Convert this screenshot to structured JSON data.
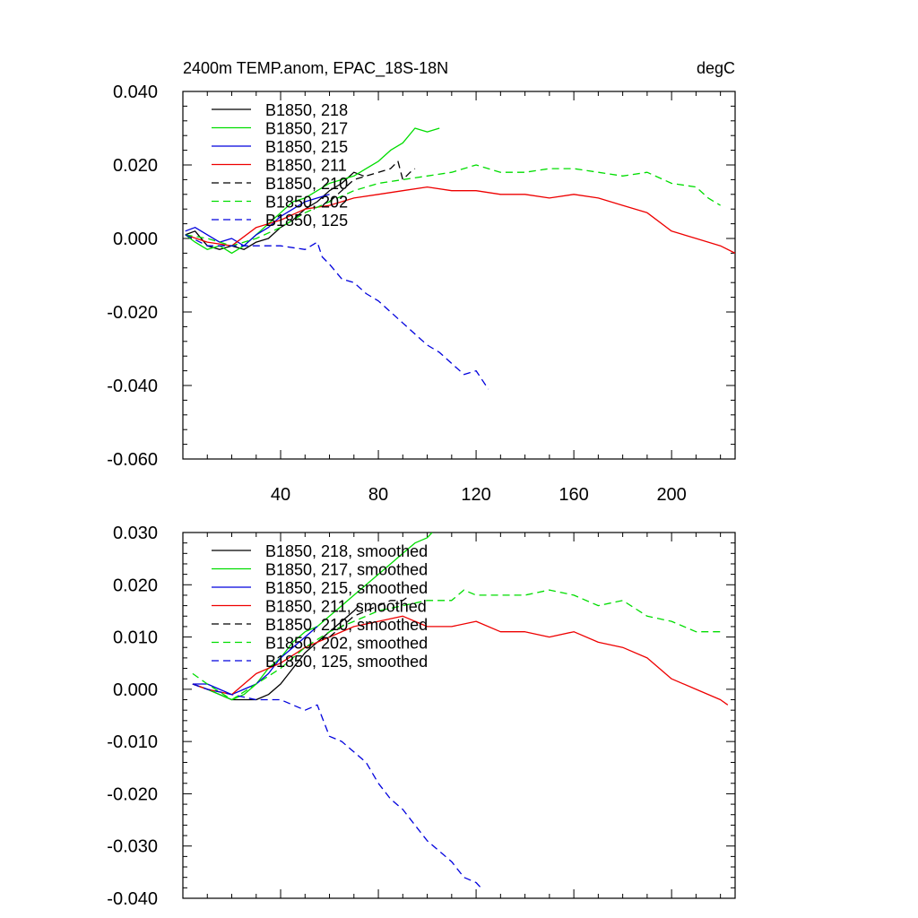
{
  "chart_data": [
    {
      "type": "line",
      "title": "2400m TEMP.anom, EPAC_18S-18N",
      "units": "degC",
      "xlim": [
        0,
        226
      ],
      "ylim": [
        -0.06,
        0.04
      ],
      "xticks": [
        40,
        80,
        120,
        160,
        200
      ],
      "xtick_labels": [
        "40",
        "80",
        "120",
        "160",
        "200"
      ],
      "yticks": [
        0.04,
        0.02,
        0.0,
        -0.02,
        -0.04,
        -0.06
      ],
      "ytick_labels": [
        "0.040",
        "0.020",
        "0.000",
        "-0.020",
        "-0.040",
        "-0.060"
      ],
      "grid": false,
      "legend_position": "top-left",
      "series": [
        {
          "name": "B1850, 218",
          "color": "#000000",
          "dash": "solid",
          "x": [
            1,
            5,
            10,
            15,
            20,
            25,
            30,
            35,
            40,
            45,
            50,
            55,
            60,
            65,
            70,
            74
          ],
          "y": [
            0.001,
            0.002,
            -0.002,
            -0.003,
            -0.002,
            -0.003,
            -0.001,
            0.0,
            0.003,
            0.005,
            0.008,
            0.01,
            0.013,
            0.015,
            0.018,
            0.017
          ]
        },
        {
          "name": "B1850, 217",
          "color": "#00dd00",
          "dash": "solid",
          "x": [
            1,
            5,
            10,
            15,
            20,
            25,
            30,
            35,
            40,
            45,
            50,
            55,
            60,
            65,
            70,
            75,
            80,
            85,
            90,
            95,
            100,
            105
          ],
          "y": [
            0.001,
            -0.001,
            -0.003,
            -0.002,
            -0.004,
            -0.002,
            0.001,
            0.004,
            0.007,
            0.01,
            0.011,
            0.013,
            0.015,
            0.016,
            0.017,
            0.019,
            0.021,
            0.024,
            0.026,
            0.03,
            0.029,
            0.03
          ]
        },
        {
          "name": "B1850, 215",
          "color": "#0000dd",
          "dash": "solid",
          "x": [
            1,
            5,
            10,
            15,
            20,
            25,
            30,
            35,
            40,
            45,
            50,
            55,
            60
          ],
          "y": [
            0.002,
            0.003,
            0.001,
            -0.001,
            0.0,
            -0.002,
            0.001,
            0.003,
            0.006,
            0.008,
            0.01,
            0.011,
            0.012
          ]
        },
        {
          "name": "B1850, 211",
          "color": "#ee0000",
          "dash": "solid",
          "x": [
            1,
            10,
            20,
            30,
            40,
            50,
            60,
            70,
            80,
            90,
            100,
            110,
            120,
            130,
            140,
            150,
            160,
            170,
            180,
            190,
            200,
            210,
            220,
            226
          ],
          "y": [
            0.001,
            -0.001,
            -0.002,
            0.003,
            0.005,
            0.008,
            0.009,
            0.011,
            0.012,
            0.013,
            0.014,
            0.013,
            0.013,
            0.012,
            0.012,
            0.011,
            0.012,
            0.011,
            0.009,
            0.007,
            0.002,
            0.0,
            -0.002,
            -0.004
          ]
        },
        {
          "name": "B1850, 210",
          "color": "#000000",
          "dash": "dashed",
          "x": [
            60,
            65,
            70,
            75,
            80,
            85,
            88,
            90,
            93,
            95
          ],
          "y": [
            0.01,
            0.013,
            0.016,
            0.017,
            0.018,
            0.019,
            0.021,
            0.016,
            0.018,
            0.019
          ]
        },
        {
          "name": "B1850, 202",
          "color": "#00dd00",
          "dash": "dashed",
          "x": [
            1,
            10,
            20,
            30,
            40,
            50,
            60,
            70,
            80,
            90,
            100,
            110,
            120,
            130,
            140,
            150,
            160,
            170,
            180,
            190,
            200,
            210,
            215,
            220
          ],
          "y": [
            0.001,
            0.0,
            -0.002,
            0.0,
            0.003,
            0.007,
            0.01,
            0.013,
            0.015,
            0.016,
            0.017,
            0.018,
            0.02,
            0.018,
            0.018,
            0.019,
            0.019,
            0.018,
            0.017,
            0.018,
            0.015,
            0.014,
            0.011,
            0.009
          ]
        },
        {
          "name": "B1850, 125",
          "color": "#0000dd",
          "dash": "dashed",
          "x": [
            1,
            10,
            20,
            30,
            40,
            50,
            55,
            57,
            60,
            65,
            70,
            75,
            80,
            85,
            90,
            95,
            100,
            105,
            110,
            115,
            120,
            125
          ],
          "y": [
            0.001,
            -0.002,
            -0.002,
            -0.002,
            -0.002,
            -0.003,
            -0.001,
            -0.005,
            -0.007,
            -0.011,
            -0.012,
            -0.015,
            -0.017,
            -0.02,
            -0.023,
            -0.026,
            -0.029,
            -0.031,
            -0.034,
            -0.037,
            -0.036,
            -0.041
          ]
        }
      ]
    },
    {
      "type": "line",
      "xlim": [
        0,
        226
      ],
      "ylim": [
        -0.04,
        0.03
      ],
      "xticks": [
        40,
        80,
        120,
        160,
        200
      ],
      "yticks": [
        0.03,
        0.02,
        0.01,
        0.0,
        -0.01,
        -0.02,
        -0.03,
        -0.04
      ],
      "ytick_labels": [
        "0.030",
        "0.020",
        "0.010",
        "0.000",
        "-0.010",
        "-0.020",
        "-0.030",
        "-0.040"
      ],
      "grid": false,
      "legend_position": "top-left",
      "series": [
        {
          "name": "B1850, 218, smoothed",
          "color": "#000000",
          "dash": "solid",
          "x": [
            4,
            10,
            15,
            20,
            25,
            30,
            35,
            40,
            45,
            50,
            55,
            60,
            65,
            70,
            72
          ],
          "y": [
            0.001,
            0.0,
            -0.001,
            -0.002,
            -0.002,
            -0.002,
            -0.001,
            0.001,
            0.004,
            0.007,
            0.009,
            0.011,
            0.013,
            0.015,
            0.016
          ]
        },
        {
          "name": "B1850, 217, smoothed",
          "color": "#00dd00",
          "dash": "solid",
          "x": [
            4,
            10,
            15,
            20,
            25,
            30,
            35,
            40,
            45,
            50,
            55,
            60,
            65,
            70,
            75,
            80,
            85,
            90,
            95,
            100,
            102
          ],
          "y": [
            0.001,
            0.0,
            -0.001,
            -0.002,
            -0.001,
            0.001,
            0.004,
            0.006,
            0.009,
            0.011,
            0.012,
            0.014,
            0.016,
            0.018,
            0.02,
            0.022,
            0.024,
            0.026,
            0.028,
            0.029,
            0.03
          ]
        },
        {
          "name": "B1850, 215, smoothed",
          "color": "#0000dd",
          "dash": "solid",
          "x": [
            4,
            10,
            15,
            20,
            25,
            30,
            35,
            40,
            45,
            50,
            55
          ],
          "y": [
            0.001,
            0.001,
            0.0,
            -0.001,
            0.0,
            0.001,
            0.003,
            0.006,
            0.008,
            0.01,
            0.012
          ]
        },
        {
          "name": "B1850, 211, smoothed",
          "color": "#ee0000",
          "dash": "solid",
          "x": [
            4,
            10,
            20,
            30,
            40,
            50,
            60,
            70,
            80,
            90,
            100,
            110,
            120,
            130,
            140,
            150,
            160,
            170,
            180,
            190,
            200,
            210,
            220,
            223
          ],
          "y": [
            0.001,
            0.0,
            -0.001,
            0.003,
            0.005,
            0.008,
            0.01,
            0.012,
            0.013,
            0.014,
            0.012,
            0.012,
            0.013,
            0.011,
            0.011,
            0.01,
            0.011,
            0.009,
            0.008,
            0.006,
            0.002,
            0.0,
            -0.002,
            -0.003
          ]
        },
        {
          "name": "B1850, 210, smoothed",
          "color": "#000000",
          "dash": "dashed",
          "x": [
            60,
            65,
            70,
            75,
            80,
            85,
            90,
            93
          ],
          "y": [
            0.01,
            0.012,
            0.014,
            0.015,
            0.016,
            0.017,
            0.017,
            0.018
          ]
        },
        {
          "name": "B1850, 202, smoothed",
          "color": "#00dd00",
          "dash": "dashed",
          "x": [
            4,
            10,
            20,
            30,
            40,
            50,
            60,
            70,
            80,
            90,
            100,
            110,
            115,
            120,
            130,
            140,
            150,
            160,
            170,
            180,
            190,
            200,
            210,
            215,
            220
          ],
          "y": [
            0.003,
            0.001,
            -0.002,
            0.001,
            0.004,
            0.008,
            0.011,
            0.013,
            0.015,
            0.016,
            0.017,
            0.017,
            0.019,
            0.018,
            0.018,
            0.018,
            0.019,
            0.018,
            0.016,
            0.017,
            0.014,
            0.013,
            0.011,
            0.011,
            0.011
          ]
        },
        {
          "name": "B1850, 125, smoothed",
          "color": "#0000dd",
          "dash": "dashed",
          "x": [
            4,
            10,
            20,
            30,
            40,
            50,
            55,
            60,
            65,
            70,
            75,
            80,
            85,
            90,
            95,
            100,
            105,
            110,
            115,
            120,
            122
          ],
          "y": [
            0.001,
            0.0,
            -0.001,
            -0.002,
            -0.002,
            -0.004,
            -0.003,
            -0.009,
            -0.01,
            -0.012,
            -0.014,
            -0.018,
            -0.021,
            -0.023,
            -0.026,
            -0.029,
            -0.031,
            -0.033,
            -0.036,
            -0.037,
            -0.038
          ]
        }
      ]
    }
  ]
}
